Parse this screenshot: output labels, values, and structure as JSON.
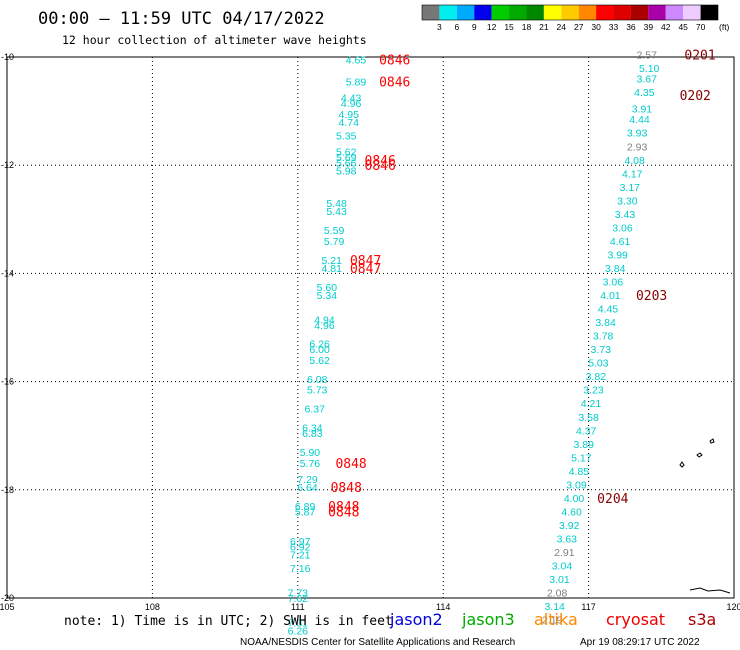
{
  "header": {
    "title": "00:00 – 11:59 UTC 04/17/2022",
    "subtitle": "12 hour collection of altimeter wave heights"
  },
  "colorbar": {
    "unit": "(ft)",
    "labels": [
      "3",
      "6",
      "9",
      "12",
      "15",
      "18",
      "21",
      "24",
      "27",
      "30",
      "33",
      "36",
      "39",
      "42",
      "45",
      "70"
    ],
    "colors": [
      "#777777",
      "#00eeee",
      "#00aaff",
      "#0000ee",
      "#00cc00",
      "#00aa00",
      "#008800",
      "#ffff00",
      "#ffcc00",
      "#ff8800",
      "#ff0000",
      "#dd0000",
      "#aa0000",
      "#aa00aa",
      "#cc88ff",
      "#eeccff",
      "#000000"
    ]
  },
  "footer": {
    "note": "note: 1) Time is in UTC; 2) SWH is in feet",
    "satellites": [
      {
        "name": "jason2",
        "color": "#0000dd"
      },
      {
        "name": "jason3",
        "color": "#00aa00"
      },
      {
        "name": "altika",
        "color": "#ff8800"
      },
      {
        "name": "cryosat",
        "color": "#ee0000"
      },
      {
        "name": "s3a",
        "color": "#aa0000"
      }
    ],
    "credit": "NOAA/NESDIS Center for Satellite Applications and Research",
    "timestamp": "Apr 19 08:29:17 UTC 2022"
  },
  "chart_data": {
    "type": "scatter",
    "xlim": [
      105,
      120
    ],
    "ylim": [
      -20,
      -10
    ],
    "x_ticks": [
      105,
      108,
      111,
      114,
      117,
      120
    ],
    "y_ticks": [
      -10,
      -12,
      -14,
      -16,
      -18,
      -20
    ],
    "x_tick_labels": [
      "105",
      "108",
      "111",
      "114",
      "117",
      "120"
    ],
    "y_tick_labels": [
      "-10",
      "-12",
      "-14",
      "-16",
      "-18",
      "-20"
    ],
    "grid": true,
    "series": [
      {
        "points": [
          {
            "x": 112.2,
            "y": -10.05,
            "v": "4.65",
            "c": "#00cccc"
          },
          {
            "x": 112.2,
            "y": -10.45,
            "v": "5.89",
            "c": "#00cccc"
          },
          {
            "x": 112.1,
            "y": -10.75,
            "v": "4.43",
            "c": "#00cccc"
          },
          {
            "x": 112.1,
            "y": -10.85,
            "v": "4.96",
            "c": "#00cccc"
          },
          {
            "x": 112.05,
            "y": -11.05,
            "v": "4.95",
            "c": "#00cccc"
          },
          {
            "x": 112.05,
            "y": -11.2,
            "v": "4.74",
            "c": "#00cccc"
          },
          {
            "x": 112.0,
            "y": -11.45,
            "v": "5.35",
            "c": "#00cccc"
          },
          {
            "x": 112.0,
            "y": -11.75,
            "v": "5.62",
            "c": "#00cccc"
          },
          {
            "x": 112.0,
            "y": -11.85,
            "v": "5.69",
            "c": "#00cccc"
          },
          {
            "x": 112.0,
            "y": -11.95,
            "v": "5.66",
            "c": "#00cccc"
          },
          {
            "x": 112.0,
            "y": -12.1,
            "v": "5.98",
            "c": "#00cccc"
          },
          {
            "x": 111.8,
            "y": -12.7,
            "v": "5.48",
            "c": "#00cccc"
          },
          {
            "x": 111.8,
            "y": -12.85,
            "v": "5.43",
            "c": "#00cccc"
          },
          {
            "x": 111.75,
            "y": -13.2,
            "v": "5.59",
            "c": "#00cccc"
          },
          {
            "x": 111.75,
            "y": -13.4,
            "v": "5.79",
            "c": "#00cccc"
          },
          {
            "x": 111.7,
            "y": -13.75,
            "v": "5.21",
            "c": "#00cccc"
          },
          {
            "x": 111.7,
            "y": -13.9,
            "v": "4.81",
            "c": "#00cccc"
          },
          {
            "x": 111.6,
            "y": -14.25,
            "v": "5.60",
            "c": "#00cccc"
          },
          {
            "x": 111.6,
            "y": -14.4,
            "v": "5.34",
            "c": "#00cccc"
          },
          {
            "x": 111.55,
            "y": -14.85,
            "v": "4.94",
            "c": "#00cccc"
          },
          {
            "x": 111.55,
            "y": -14.95,
            "v": "4.96",
            "c": "#00cccc"
          },
          {
            "x": 111.45,
            "y": -15.3,
            "v": "6.26",
            "c": "#00cccc"
          },
          {
            "x": 111.45,
            "y": -15.4,
            "v": "6.00",
            "c": "#00cccc"
          },
          {
            "x": 111.45,
            "y": -15.6,
            "v": "5.62",
            "c": "#00cccc"
          },
          {
            "x": 111.4,
            "y": -15.95,
            "v": "6.08",
            "c": "#00cccc"
          },
          {
            "x": 111.4,
            "y": -16.15,
            "v": "5.73",
            "c": "#00cccc"
          },
          {
            "x": 111.35,
            "y": -16.5,
            "v": "6.37",
            "c": "#00cccc"
          },
          {
            "x": 111.3,
            "y": -16.85,
            "v": "6.34",
            "c": "#00cccc"
          },
          {
            "x": 111.3,
            "y": -16.95,
            "v": "6.83",
            "c": "#00cccc"
          },
          {
            "x": 111.25,
            "y": -17.3,
            "v": "5.90",
            "c": "#00cccc"
          },
          {
            "x": 111.25,
            "y": -17.5,
            "v": "5.76",
            "c": "#00cccc"
          },
          {
            "x": 111.2,
            "y": -17.8,
            "v": "7.29",
            "c": "#00cccc"
          },
          {
            "x": 111.2,
            "y": -17.95,
            "v": "6.64",
            "c": "#00cccc"
          },
          {
            "x": 111.15,
            "y": -18.3,
            "v": "6.89",
            "c": "#00cccc"
          },
          {
            "x": 111.15,
            "y": -18.4,
            "v": "5.87",
            "c": "#00cccc"
          },
          {
            "x": 111.05,
            "y": -18.95,
            "v": "6.97",
            "c": "#00cccc"
          },
          {
            "x": 111.05,
            "y": -19.05,
            "v": "6.92",
            "c": "#00cccc"
          },
          {
            "x": 111.05,
            "y": -19.2,
            "v": "7.21",
            "c": "#00cccc"
          },
          {
            "x": 111.05,
            "y": -19.45,
            "v": "7.16",
            "c": "#00cccc"
          },
          {
            "x": 111.0,
            "y": -19.9,
            "v": "7.73",
            "c": "#00cccc"
          },
          {
            "x": 111.0,
            "y": -20.0,
            "v": "7.62",
            "c": "#00cccc"
          },
          {
            "x": 111.0,
            "y": -20.45,
            "v": "7.31",
            "c": "#00cccc"
          },
          {
            "x": 111.0,
            "y": -20.6,
            "v": "6.26",
            "c": "#00cccc"
          },
          {
            "x": 118.2,
            "y": -9.95,
            "v": "2.57",
            "c": "#808080"
          },
          {
            "x": 118.25,
            "y": -10.2,
            "v": "5.10",
            "c": "#00cccc"
          },
          {
            "x": 118.2,
            "y": -10.4,
            "v": "3.67",
            "c": "#00cccc"
          },
          {
            "x": 118.15,
            "y": -10.65,
            "v": "4.35",
            "c": "#00cccc"
          },
          {
            "x": 118.1,
            "y": -10.95,
            "v": "3.91",
            "c": "#00cccc"
          },
          {
            "x": 118.05,
            "y": -11.15,
            "v": "4.44",
            "c": "#00cccc"
          },
          {
            "x": 118.0,
            "y": -11.4,
            "v": "3.93",
            "c": "#00cccc"
          },
          {
            "x": 118.0,
            "y": -11.65,
            "v": "2.93",
            "c": "#808080"
          },
          {
            "x": 117.95,
            "y": -11.9,
            "v": "4.08",
            "c": "#00cccc"
          },
          {
            "x": 117.9,
            "y": -12.15,
            "v": "4.17",
            "c": "#00cccc"
          },
          {
            "x": 117.85,
            "y": -12.4,
            "v": "3.17",
            "c": "#00cccc"
          },
          {
            "x": 117.8,
            "y": -12.65,
            "v": "3.30",
            "c": "#00cccc"
          },
          {
            "x": 117.75,
            "y": -12.9,
            "v": "3.43",
            "c": "#00cccc"
          },
          {
            "x": 117.7,
            "y": -13.15,
            "v": "3.06",
            "c": "#00cccc"
          },
          {
            "x": 117.65,
            "y": -13.4,
            "v": "4.61",
            "c": "#00cccc"
          },
          {
            "x": 117.6,
            "y": -13.65,
            "v": "3.99",
            "c": "#00cccc"
          },
          {
            "x": 117.55,
            "y": -13.9,
            "v": "3.84",
            "c": "#00cccc"
          },
          {
            "x": 117.5,
            "y": -14.15,
            "v": "3.06",
            "c": "#00cccc"
          },
          {
            "x": 117.45,
            "y": -14.4,
            "v": "4.01",
            "c": "#00cccc"
          },
          {
            "x": 117.4,
            "y": -14.65,
            "v": "4.45",
            "c": "#00cccc"
          },
          {
            "x": 117.35,
            "y": -14.9,
            "v": "3.84",
            "c": "#00cccc"
          },
          {
            "x": 117.3,
            "y": -15.15,
            "v": "3.78",
            "c": "#00cccc"
          },
          {
            "x": 117.25,
            "y": -15.4,
            "v": "3.73",
            "c": "#00cccc"
          },
          {
            "x": 117.2,
            "y": -15.65,
            "v": "5.03",
            "c": "#00cccc"
          },
          {
            "x": 117.15,
            "y": -15.9,
            "v": "3.82",
            "c": "#00cccc"
          },
          {
            "x": 117.1,
            "y": -16.15,
            "v": "3.23",
            "c": "#00cccc"
          },
          {
            "x": 117.05,
            "y": -16.4,
            "v": "4.21",
            "c": "#00cccc"
          },
          {
            "x": 117.0,
            "y": -16.65,
            "v": "3.58",
            "c": "#00cccc"
          },
          {
            "x": 116.95,
            "y": -16.9,
            "v": "4.37",
            "c": "#00cccc"
          },
          {
            "x": 116.9,
            "y": -17.15,
            "v": "3.89",
            "c": "#00cccc"
          },
          {
            "x": 116.85,
            "y": -17.4,
            "v": "5.17",
            "c": "#00cccc"
          },
          {
            "x": 116.8,
            "y": -17.65,
            "v": "4.85",
            "c": "#00cccc"
          },
          {
            "x": 116.75,
            "y": -17.9,
            "v": "3.09",
            "c": "#00cccc"
          },
          {
            "x": 116.7,
            "y": -18.15,
            "v": "4.00",
            "c": "#00cccc"
          },
          {
            "x": 116.65,
            "y": -18.4,
            "v": "4.60",
            "c": "#00cccc"
          },
          {
            "x": 116.6,
            "y": -18.65,
            "v": "3.92",
            "c": "#00cccc"
          },
          {
            "x": 116.55,
            "y": -18.9,
            "v": "3.63",
            "c": "#00cccc"
          },
          {
            "x": 116.5,
            "y": -19.15,
            "v": "2.91",
            "c": "#808080"
          },
          {
            "x": 116.45,
            "y": -19.4,
            "v": "3.04",
            "c": "#00cccc"
          },
          {
            "x": 116.4,
            "y": -19.65,
            "v": "3.01",
            "c": "#00cccc"
          },
          {
            "x": 116.35,
            "y": -19.9,
            "v": "2.08",
            "c": "#808080"
          },
          {
            "x": 116.3,
            "y": -20.15,
            "v": "3.14",
            "c": "#00cccc"
          },
          {
            "x": 116.25,
            "y": -20.4,
            "v": "2.19",
            "c": "#808080"
          }
        ]
      }
    ],
    "time_labels": [
      {
        "x": 113.0,
        "y": -10.05,
        "t": "0846",
        "c": "#ff0000"
      },
      {
        "x": 113.0,
        "y": -10.45,
        "t": "0846",
        "c": "#ff0000"
      },
      {
        "x": 112.7,
        "y": -11.9,
        "t": "0846",
        "c": "#ff0000"
      },
      {
        "x": 112.7,
        "y": -12.0,
        "t": "0846",
        "c": "#ff0000"
      },
      {
        "x": 112.4,
        "y": -13.75,
        "t": "0847",
        "c": "#ff0000"
      },
      {
        "x": 112.4,
        "y": -13.9,
        "t": "0847",
        "c": "#ff0000"
      },
      {
        "x": 112.1,
        "y": -17.5,
        "t": "0848",
        "c": "#ff0000"
      },
      {
        "x": 112.0,
        "y": -17.95,
        "t": "0848",
        "c": "#ff0000"
      },
      {
        "x": 111.95,
        "y": -18.3,
        "t": "0848",
        "c": "#ff0000"
      },
      {
        "x": 111.95,
        "y": -18.4,
        "t": "0848",
        "c": "#ff0000"
      },
      {
        "x": 119.3,
        "y": -9.95,
        "t": "0201",
        "c": "#880000"
      },
      {
        "x": 119.2,
        "y": -10.7,
        "t": "0202",
        "c": "#880000"
      },
      {
        "x": 118.3,
        "y": -14.4,
        "t": "0203",
        "c": "#880000"
      },
      {
        "x": 117.5,
        "y": -18.15,
        "t": "0204",
        "c": "#880000"
      }
    ]
  }
}
